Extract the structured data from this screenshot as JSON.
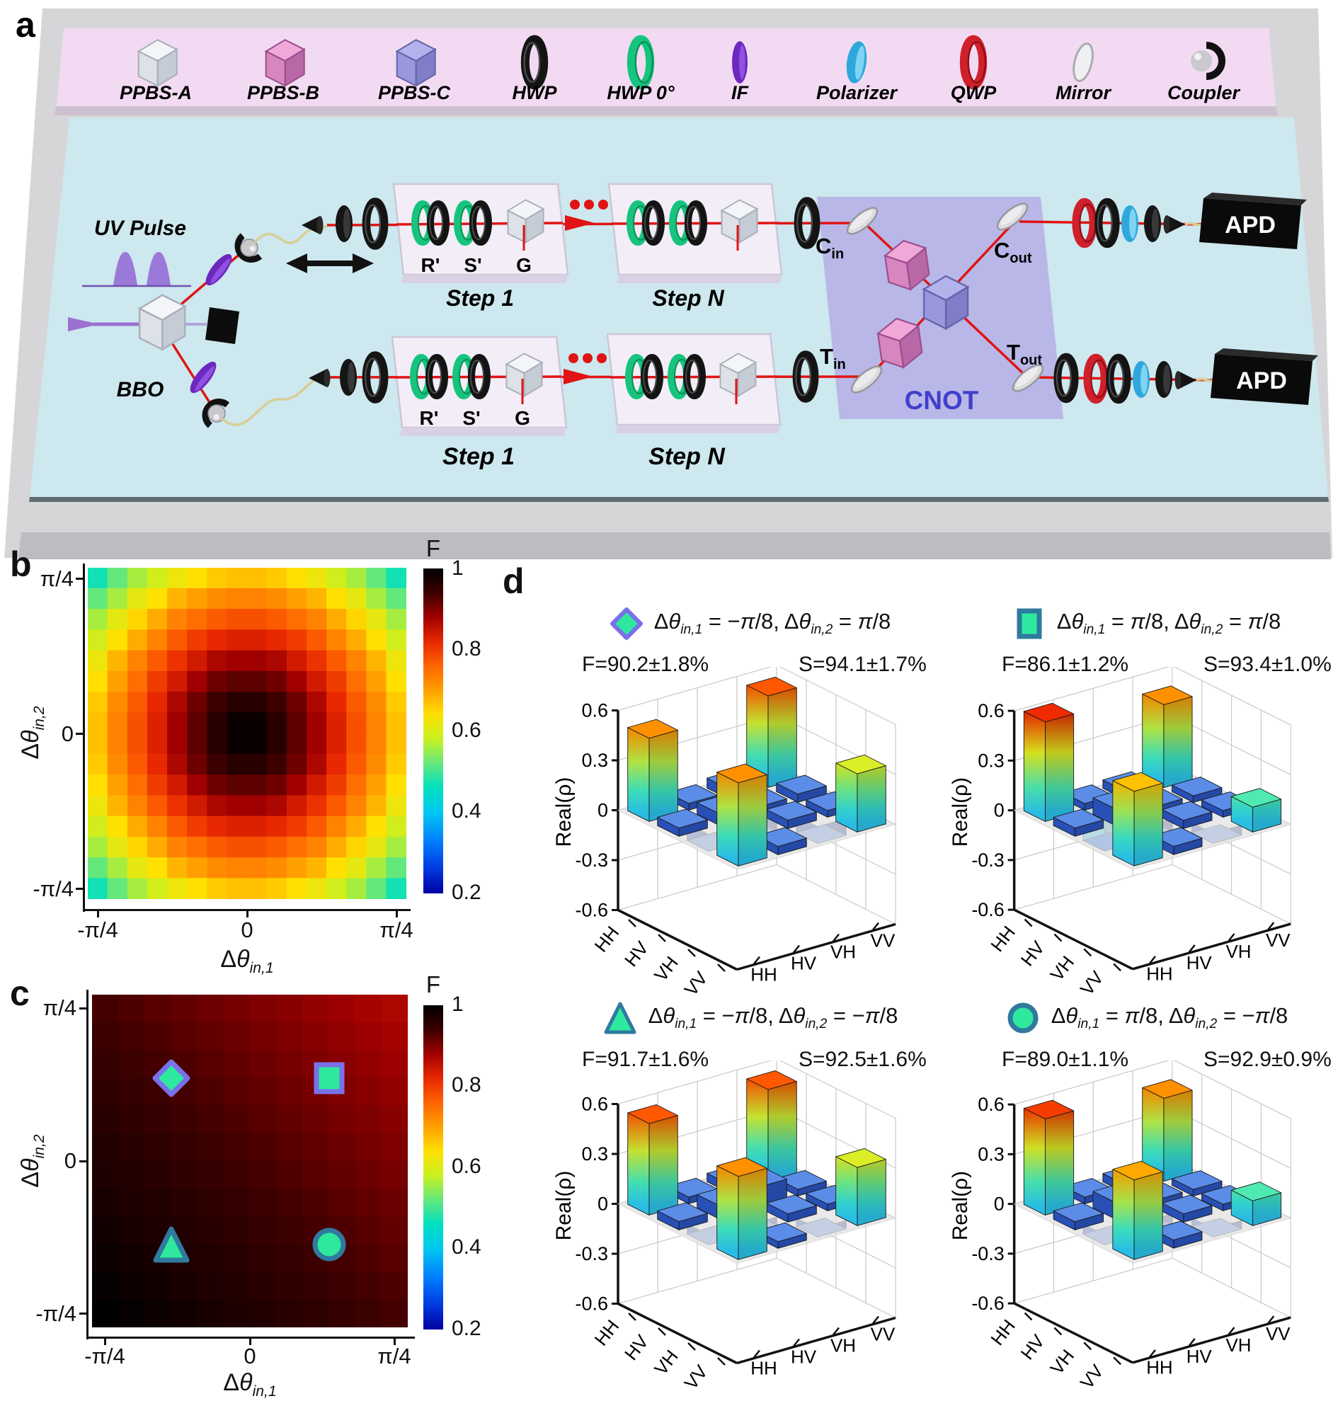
{
  "figure": {
    "panel_labels": {
      "a": "a",
      "b": "b",
      "c": "c",
      "d": "d"
    }
  },
  "panel_a": {
    "legend_items": [
      {
        "label": "PPBS-A",
        "icon": "cube-white"
      },
      {
        "label": "PPBS-B",
        "icon": "cube-pink"
      },
      {
        "label": "PPBS-C",
        "icon": "cube-blue"
      },
      {
        "label": "HWP",
        "icon": "ring-black"
      },
      {
        "label": "HWP 0°",
        "icon": "ring-green"
      },
      {
        "label": "IF",
        "icon": "rod-purple"
      },
      {
        "label": "Polarizer",
        "icon": "disc-cyan"
      },
      {
        "label": "QWP",
        "icon": "ring-red"
      },
      {
        "label": "Mirror",
        "icon": "disc-white"
      },
      {
        "label": "Coupler",
        "icon": "coupler-sphere"
      }
    ],
    "labels": {
      "uv_pulse": "UV Pulse",
      "bbo": "BBO",
      "r_prime": "R'",
      "s_prime": "S'",
      "g": "G",
      "step1": "Step 1",
      "stepN": "Step N",
      "cnot": "CNOT",
      "apd": "APD",
      "c_in": {
        "main": "C",
        "sub": "in"
      },
      "c_out": {
        "main": "C",
        "sub": "out"
      },
      "t_in": {
        "main": "T",
        "sub": "in"
      },
      "t_out": {
        "main": "T",
        "sub": "out"
      }
    }
  },
  "axis": {
    "x_ticks": [
      "-π/4",
      "0",
      "π/4"
    ],
    "y_ticks": [
      "π/4",
      "0",
      "-π/4"
    ],
    "xlabel_parts": [
      {
        "t": "Δ"
      },
      {
        "i": "θ"
      },
      {
        "sub": "in,1"
      }
    ],
    "ylabel_parts": [
      {
        "t": "Δ"
      },
      {
        "i": "θ"
      },
      {
        "sub": "in,2"
      }
    ]
  },
  "colorbar": {
    "title": "F",
    "ticks": [
      "1",
      "0.8",
      "0.6",
      "0.4",
      "0.2"
    ],
    "range": [
      0.2,
      1
    ]
  },
  "chart_data": [
    {
      "id": "b",
      "type": "heatmap",
      "xlabel": "Δθ_in,1",
      "ylabel": "Δθ_in,2",
      "x_range": [
        "-π/4",
        "π/4"
      ],
      "y_range": [
        "-π/4",
        "π/4"
      ],
      "colorbar_label": "F",
      "colorbar_range": [
        0.2,
        1
      ],
      "grid": false,
      "values": [
        [
          0.47,
          0.52,
          0.56,
          0.59,
          0.62,
          0.64,
          0.66,
          0.67,
          0.67,
          0.66,
          0.64,
          0.62,
          0.59,
          0.56,
          0.52,
          0.47
        ],
        [
          0.52,
          0.56,
          0.61,
          0.64,
          0.68,
          0.7,
          0.72,
          0.73,
          0.73,
          0.72,
          0.7,
          0.68,
          0.64,
          0.61,
          0.56,
          0.52
        ],
        [
          0.56,
          0.61,
          0.65,
          0.69,
          0.73,
          0.75,
          0.77,
          0.78,
          0.78,
          0.77,
          0.75,
          0.73,
          0.69,
          0.65,
          0.61,
          0.56
        ],
        [
          0.59,
          0.64,
          0.69,
          0.73,
          0.77,
          0.8,
          0.82,
          0.83,
          0.83,
          0.82,
          0.8,
          0.77,
          0.73,
          0.69,
          0.64,
          0.59
        ],
        [
          0.62,
          0.68,
          0.73,
          0.77,
          0.81,
          0.84,
          0.87,
          0.88,
          0.88,
          0.87,
          0.84,
          0.81,
          0.77,
          0.73,
          0.68,
          0.62
        ],
        [
          0.64,
          0.7,
          0.75,
          0.8,
          0.84,
          0.88,
          0.91,
          0.92,
          0.92,
          0.91,
          0.88,
          0.84,
          0.8,
          0.75,
          0.7,
          0.64
        ],
        [
          0.66,
          0.72,
          0.77,
          0.82,
          0.87,
          0.91,
          0.94,
          0.96,
          0.96,
          0.94,
          0.91,
          0.87,
          0.82,
          0.77,
          0.72,
          0.66
        ],
        [
          0.67,
          0.73,
          0.78,
          0.83,
          0.88,
          0.92,
          0.96,
          0.99,
          0.99,
          0.96,
          0.92,
          0.88,
          0.83,
          0.78,
          0.73,
          0.67
        ],
        [
          0.67,
          0.73,
          0.78,
          0.83,
          0.88,
          0.92,
          0.96,
          0.99,
          0.99,
          0.96,
          0.92,
          0.88,
          0.83,
          0.78,
          0.73,
          0.67
        ],
        [
          0.66,
          0.72,
          0.77,
          0.82,
          0.87,
          0.91,
          0.94,
          0.96,
          0.96,
          0.94,
          0.91,
          0.87,
          0.82,
          0.77,
          0.72,
          0.66
        ],
        [
          0.64,
          0.7,
          0.75,
          0.8,
          0.84,
          0.88,
          0.91,
          0.92,
          0.92,
          0.91,
          0.88,
          0.84,
          0.8,
          0.75,
          0.7,
          0.64
        ],
        [
          0.62,
          0.68,
          0.73,
          0.77,
          0.81,
          0.84,
          0.87,
          0.88,
          0.88,
          0.87,
          0.84,
          0.81,
          0.77,
          0.73,
          0.68,
          0.62
        ],
        [
          0.59,
          0.64,
          0.69,
          0.73,
          0.77,
          0.8,
          0.82,
          0.83,
          0.83,
          0.82,
          0.8,
          0.77,
          0.73,
          0.69,
          0.64,
          0.59
        ],
        [
          0.56,
          0.61,
          0.65,
          0.69,
          0.73,
          0.75,
          0.77,
          0.78,
          0.78,
          0.77,
          0.75,
          0.73,
          0.69,
          0.65,
          0.61,
          0.56
        ],
        [
          0.52,
          0.56,
          0.61,
          0.64,
          0.68,
          0.7,
          0.72,
          0.73,
          0.73,
          0.72,
          0.7,
          0.68,
          0.64,
          0.61,
          0.56,
          0.52
        ],
        [
          0.47,
          0.52,
          0.56,
          0.59,
          0.62,
          0.64,
          0.66,
          0.67,
          0.67,
          0.66,
          0.64,
          0.62,
          0.59,
          0.56,
          0.52,
          0.47
        ]
      ]
    },
    {
      "id": "c",
      "type": "heatmap",
      "xlabel": "Δθ_in,1",
      "ylabel": "Δθ_in,2",
      "x_range": [
        "-π/4",
        "π/4"
      ],
      "y_range": [
        "-π/4",
        "π/4"
      ],
      "colorbar_label": "F",
      "colorbar_range": [
        0.2,
        1
      ],
      "grid": false,
      "values": [
        [
          0.935,
          0.929,
          0.923,
          0.917,
          0.911,
          0.905,
          0.9,
          0.894,
          0.888,
          0.882,
          0.876,
          0.87
        ],
        [
          0.941,
          0.935,
          0.929,
          0.923,
          0.917,
          0.911,
          0.905,
          0.9,
          0.894,
          0.888,
          0.882,
          0.876
        ],
        [
          0.947,
          0.941,
          0.935,
          0.929,
          0.923,
          0.917,
          0.911,
          0.905,
          0.9,
          0.894,
          0.888,
          0.882
        ],
        [
          0.953,
          0.947,
          0.941,
          0.935,
          0.929,
          0.923,
          0.917,
          0.911,
          0.905,
          0.9,
          0.894,
          0.888
        ],
        [
          0.959,
          0.953,
          0.947,
          0.941,
          0.935,
          0.929,
          0.923,
          0.917,
          0.911,
          0.905,
          0.9,
          0.894
        ],
        [
          0.965,
          0.959,
          0.953,
          0.947,
          0.941,
          0.935,
          0.929,
          0.923,
          0.917,
          0.911,
          0.905,
          0.9
        ],
        [
          0.97,
          0.965,
          0.959,
          0.953,
          0.947,
          0.941,
          0.935,
          0.929,
          0.923,
          0.917,
          0.911,
          0.905
        ],
        [
          0.976,
          0.97,
          0.965,
          0.959,
          0.953,
          0.947,
          0.941,
          0.935,
          0.929,
          0.923,
          0.917,
          0.911
        ],
        [
          0.982,
          0.976,
          0.97,
          0.965,
          0.959,
          0.953,
          0.947,
          0.941,
          0.935,
          0.929,
          0.923,
          0.917
        ],
        [
          0.988,
          0.982,
          0.976,
          0.97,
          0.965,
          0.959,
          0.953,
          0.947,
          0.941,
          0.935,
          0.929,
          0.923
        ],
        [
          0.994,
          0.988,
          0.982,
          0.976,
          0.97,
          0.965,
          0.959,
          0.953,
          0.947,
          0.941,
          0.935,
          0.929
        ],
        [
          1.0,
          0.994,
          0.988,
          0.982,
          0.976,
          0.97,
          0.965,
          0.959,
          0.953,
          0.947,
          0.941,
          0.935
        ]
      ],
      "markers": [
        {
          "shape": "diamond",
          "x": "-π/8",
          "y": "π/8",
          "stroke": "purple"
        },
        {
          "shape": "square",
          "x": "π/8",
          "y": "π/8",
          "stroke": "purple"
        },
        {
          "shape": "triangle",
          "x": "-π/8",
          "y": "-π/8",
          "stroke": "teal"
        },
        {
          "shape": "circle",
          "x": "π/8",
          "y": "-π/8",
          "stroke": "teal"
        }
      ]
    },
    {
      "id": "d1",
      "type": "bar3d",
      "marker": "diamond",
      "eq": [
        {
          "t": "Δ"
        },
        {
          "i": "θ"
        },
        {
          "sub": "in,1"
        },
        {
          "t": " = −"
        },
        {
          "i": "π"
        },
        {
          "t": "/8, "
        },
        {
          "t": "Δ"
        },
        {
          "i": "θ"
        },
        {
          "sub": "in,2"
        },
        {
          "t": " = "
        },
        {
          "i": "π"
        },
        {
          "t": "/8"
        }
      ],
      "fidelity": "F=90.2±1.8%",
      "similarity": "S=94.1±1.7%",
      "zlabel": "Real(ρ)",
      "z_ticks": [
        "0.6",
        "0.3",
        "0",
        "-0.3",
        "-0.6"
      ],
      "zlim": [
        -0.6,
        0.6
      ],
      "categories": [
        "HH",
        "HV",
        "VH",
        "VV"
      ],
      "values": [
        [
          0.5,
          0.04,
          0.06,
          0.55
        ],
        [
          0.05,
          0.07,
          0.04,
          0.05
        ],
        [
          -0.1,
          -0.09,
          0.05,
          0.04
        ],
        [
          0.5,
          0.05,
          -0.1,
          0.35
        ]
      ]
    },
    {
      "id": "d2",
      "type": "bar3d",
      "marker": "square",
      "eq": [
        {
          "t": "Δ"
        },
        {
          "i": "θ"
        },
        {
          "sub": "in,1"
        },
        {
          "t": " = "
        },
        {
          "i": "π"
        },
        {
          "t": "/8, "
        },
        {
          "t": "Δ"
        },
        {
          "i": "θ"
        },
        {
          "sub": "in,2"
        },
        {
          "t": " = "
        },
        {
          "i": "π"
        },
        {
          "t": "/8"
        }
      ],
      "fidelity": "F=86.1±1.2%",
      "similarity": "S=93.4±1.0%",
      "zlabel": "Real(ρ)",
      "z_ticks": [
        "0.6",
        "0.3",
        "0",
        "-0.3",
        "-0.6"
      ],
      "zlim": [
        -0.6,
        0.6
      ],
      "categories": [
        "HH",
        "HV",
        "VH",
        "VV"
      ],
      "values": [
        [
          0.6,
          0.04,
          0.05,
          0.5
        ],
        [
          0.05,
          0.1,
          0.04,
          0.04
        ],
        [
          -0.28,
          -0.08,
          0.05,
          0.04
        ],
        [
          0.45,
          0.05,
          -0.06,
          0.15
        ]
      ]
    },
    {
      "id": "d3",
      "type": "bar3d",
      "marker": "triangle",
      "eq": [
        {
          "t": "Δ"
        },
        {
          "i": "θ"
        },
        {
          "sub": "in,1"
        },
        {
          "t": " = −"
        },
        {
          "i": "π"
        },
        {
          "t": "/8, "
        },
        {
          "t": "Δ"
        },
        {
          "i": "θ"
        },
        {
          "sub": "in,2"
        },
        {
          "t": " = −"
        },
        {
          "i": "π"
        },
        {
          "t": "/8"
        }
      ],
      "fidelity": "F=91.7±1.6%",
      "similarity": "S=92.5±1.6%",
      "zlabel": "Real(ρ)",
      "z_ticks": [
        "0.6",
        "0.3",
        "0",
        "-0.3",
        "-0.6"
      ],
      "zlim": [
        -0.6,
        0.6
      ],
      "categories": [
        "HH",
        "HV",
        "VH",
        "VV"
      ],
      "values": [
        [
          0.55,
          0.04,
          0.05,
          0.55
        ],
        [
          0.05,
          0.08,
          0.12,
          0.04
        ],
        [
          -0.06,
          -0.05,
          0.05,
          0.04
        ],
        [
          0.5,
          0.04,
          -0.05,
          0.35
        ]
      ]
    },
    {
      "id": "d4",
      "type": "bar3d",
      "marker": "circle",
      "eq": [
        {
          "t": "Δ"
        },
        {
          "i": "θ"
        },
        {
          "sub": "in,1"
        },
        {
          "t": " = "
        },
        {
          "i": "π"
        },
        {
          "t": "/8, "
        },
        {
          "t": "Δ"
        },
        {
          "i": "θ"
        },
        {
          "sub": "in,2"
        },
        {
          "t": " = −"
        },
        {
          "i": "π"
        },
        {
          "t": "/8"
        }
      ],
      "fidelity": "F=89.0±1.1%",
      "similarity": "S=92.9±0.9%",
      "zlabel": "Real(ρ)",
      "z_ticks": [
        "0.6",
        "0.3",
        "0",
        "-0.3",
        "-0.6"
      ],
      "zlim": [
        -0.6,
        0.6
      ],
      "categories": [
        "HH",
        "HV",
        "VH",
        "VV"
      ],
      "values": [
        [
          0.58,
          0.04,
          0.05,
          0.5
        ],
        [
          0.05,
          0.1,
          0.04,
          0.04
        ],
        [
          -0.06,
          -0.07,
          0.05,
          0.04
        ],
        [
          0.48,
          0.05,
          -0.05,
          0.15
        ]
      ]
    }
  ],
  "colors": {
    "beam_red": "#e01414",
    "fiber_yellow": "#d8cd96",
    "board_cyan": "#cde8ee",
    "legend_pink": "#f2dbf2",
    "platform_gray": "#d6d6d8",
    "cnot_slab": "#b7b4e6",
    "cnot_text": "#4040cc",
    "marker_fill": "#2ee89e",
    "marker_stroke_purple": "#7a70ea",
    "marker_stroke_teal": "#2f7a9e",
    "slab_top": "#5b8ce8",
    "slab_side_a": "#2b55c0",
    "slab_side_b": "#3766d4",
    "f_stops": [
      [
        0.2,
        "#0000a0"
      ],
      [
        0.26,
        "#0038e0"
      ],
      [
        0.33,
        "#0080ff"
      ],
      [
        0.4,
        "#00c8f0"
      ],
      [
        0.46,
        "#00e0c0"
      ],
      [
        0.52,
        "#64e87c"
      ],
      [
        0.58,
        "#c8f020"
      ],
      [
        0.64,
        "#ffe000"
      ],
      [
        0.7,
        "#ffa000"
      ],
      [
        0.76,
        "#ff6400"
      ],
      [
        0.82,
        "#e82800"
      ],
      [
        0.88,
        "#a00000"
      ],
      [
        0.94,
        "#3c0000"
      ],
      [
        1.0,
        "#000000"
      ]
    ],
    "z_stops": [
      [
        -0.6,
        "#000f8c"
      ],
      [
        -0.35,
        "#0045e8"
      ],
      [
        -0.15,
        "#0095ff"
      ],
      [
        0.0,
        "#2cc8f0"
      ],
      [
        0.12,
        "#3ce8c8"
      ],
      [
        0.22,
        "#7cf07c"
      ],
      [
        0.32,
        "#c8f03c"
      ],
      [
        0.4,
        "#fce800"
      ],
      [
        0.48,
        "#ffa800"
      ],
      [
        0.55,
        "#ff5800"
      ],
      [
        0.62,
        "#e81800"
      ]
    ]
  }
}
